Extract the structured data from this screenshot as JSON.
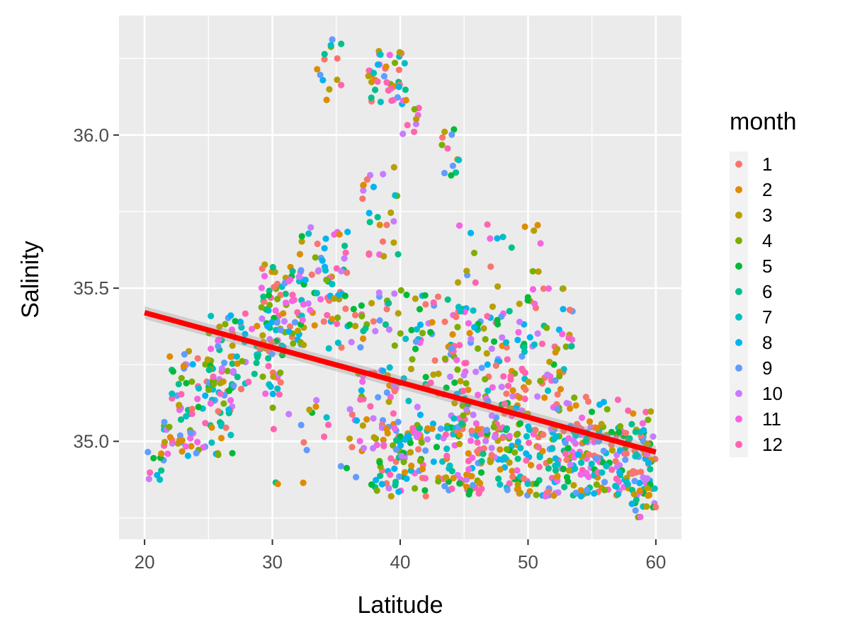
{
  "chart_data": {
    "type": "scatter",
    "title": "",
    "xlabel": "Latitude",
    "ylabel": "Salinity",
    "xlim": [
      18,
      62
    ],
    "ylim": [
      34.68,
      36.39
    ],
    "x_ticks": [
      20,
      30,
      40,
      50,
      60
    ],
    "y_ticks": [
      35.0,
      35.5,
      36.0
    ],
    "x_tick_labels": [
      "20",
      "30",
      "40",
      "50",
      "60"
    ],
    "y_tick_labels": [
      "35.0",
      "35.5",
      "36.0"
    ],
    "grid": true,
    "legend": {
      "title": "month",
      "placement": "right",
      "entries": [
        "1",
        "2",
        "3",
        "4",
        "5",
        "6",
        "7",
        "8",
        "9",
        "10",
        "11",
        "12"
      ]
    },
    "series_colors": [
      "#F8766D",
      "#DE8C00",
      "#B79F00",
      "#7CAE00",
      "#00BA38",
      "#00C08B",
      "#00BFC4",
      "#00B4F0",
      "#619CFF",
      "#C77CFF",
      "#F564E3",
      "#FF64B0"
    ],
    "trend_line": {
      "type": "linear",
      "color": "#FF0000",
      "x": [
        20,
        60
      ],
      "y": [
        35.42,
        34.965
      ]
    },
    "point_clusters": [
      {
        "x_range": [
          20,
          21.5
        ],
        "y_range": [
          34.85,
          34.98
        ],
        "n": 10
      },
      {
        "x_range": [
          21.5,
          27
        ],
        "y_range": [
          34.95,
          35.3
        ],
        "n": 120
      },
      {
        "x_range": [
          25,
          31
        ],
        "y_range": [
          35.15,
          35.42
        ],
        "n": 80
      },
      {
        "x_range": [
          29,
          32.5
        ],
        "y_range": [
          35.3,
          35.6
        ],
        "n": 70
      },
      {
        "x_range": [
          32,
          36
        ],
        "y_range": [
          35.3,
          35.7
        ],
        "n": 70
      },
      {
        "x_range": [
          33.5,
          35.5
        ],
        "y_range": [
          36.1,
          36.32
        ],
        "n": 14
      },
      {
        "x_range": [
          37.5,
          40.5
        ],
        "y_range": [
          36.1,
          36.28
        ],
        "n": 40
      },
      {
        "x_range": [
          37,
          40
        ],
        "y_range": [
          35.6,
          35.9
        ],
        "n": 25
      },
      {
        "x_range": [
          40,
          41.5
        ],
        "y_range": [
          36.0,
          36.12
        ],
        "n": 10
      },
      {
        "x_range": [
          43,
          45.5
        ],
        "y_range": [
          35.85,
          36.02
        ],
        "n": 12
      },
      {
        "x_range": [
          36,
          44
        ],
        "y_range": [
          35.0,
          35.5
        ],
        "n": 120
      },
      {
        "x_range": [
          38,
          60
        ],
        "y_range": [
          34.82,
          35.05
        ],
        "n": 420
      },
      {
        "x_range": [
          44,
          50
        ],
        "y_range": [
          35.0,
          35.45
        ],
        "n": 150
      },
      {
        "x_range": [
          49.5,
          53.5
        ],
        "y_range": [
          35.1,
          35.5
        ],
        "n": 60
      },
      {
        "x_range": [
          52,
          58
        ],
        "y_range": [
          34.85,
          35.15
        ],
        "n": 60
      },
      {
        "x_range": [
          58,
          60
        ],
        "y_range": [
          34.75,
          35.1
        ],
        "n": 40
      },
      {
        "x_range": [
          30,
          40
        ],
        "y_range": [
          34.85,
          35.25
        ],
        "n": 40
      },
      {
        "x_range": [
          44,
          48
        ],
        "y_range": [
          35.5,
          35.75
        ],
        "n": 12
      },
      {
        "x_range": [
          48,
          51
        ],
        "y_range": [
          35.55,
          35.72
        ],
        "n": 8
      }
    ]
  }
}
